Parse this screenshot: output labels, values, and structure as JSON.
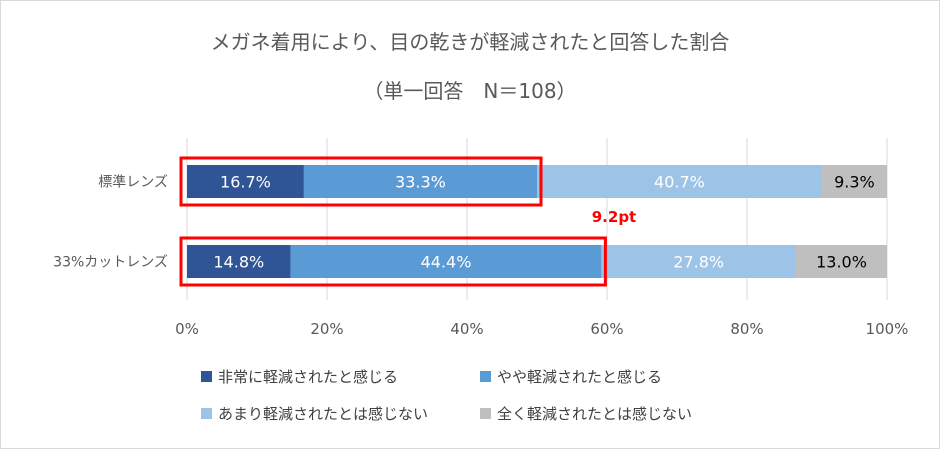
{
  "chart_data": {
    "type": "bar",
    "orientation": "horizontal",
    "stacked": "percent",
    "title": "メガネ着用により、目の乾きが軽減されたと回答した割合",
    "subtitle": "（単一回答　N＝108）",
    "categories": [
      "標準レンズ",
      "33%カットレンズ"
    ],
    "series": [
      {
        "name": "非常に軽減されたと感じる",
        "color": "#2f5597",
        "values": [
          16.7,
          14.8
        ],
        "labels": [
          "16.7%",
          "14.8%"
        ]
      },
      {
        "name": "やや軽減されたと感じる",
        "color": "#5b9bd5",
        "values": [
          33.3,
          44.4
        ],
        "labels": [
          "33.3%",
          "44.4%"
        ]
      },
      {
        "name": "あまり軽減されたとは感じない",
        "color": "#9dc3e6",
        "values": [
          40.7,
          27.8
        ],
        "labels": [
          "40.7%",
          "27.8%"
        ]
      },
      {
        "name": "全く軽減されたとは感じない",
        "color": "#bfbfbf",
        "values": [
          9.3,
          13.0
        ],
        "labels": [
          "9.3%",
          "13.0%"
        ]
      }
    ],
    "xlim": [
      0,
      100
    ],
    "xticks": [
      "0%",
      "20%",
      "40%",
      "60%",
      "80%",
      "100%"
    ],
    "grid": "vertical",
    "legend": "bottom",
    "annotation": {
      "text": "9.2pt",
      "color": "#ff0000"
    },
    "highlight_color": "#ff0000"
  }
}
